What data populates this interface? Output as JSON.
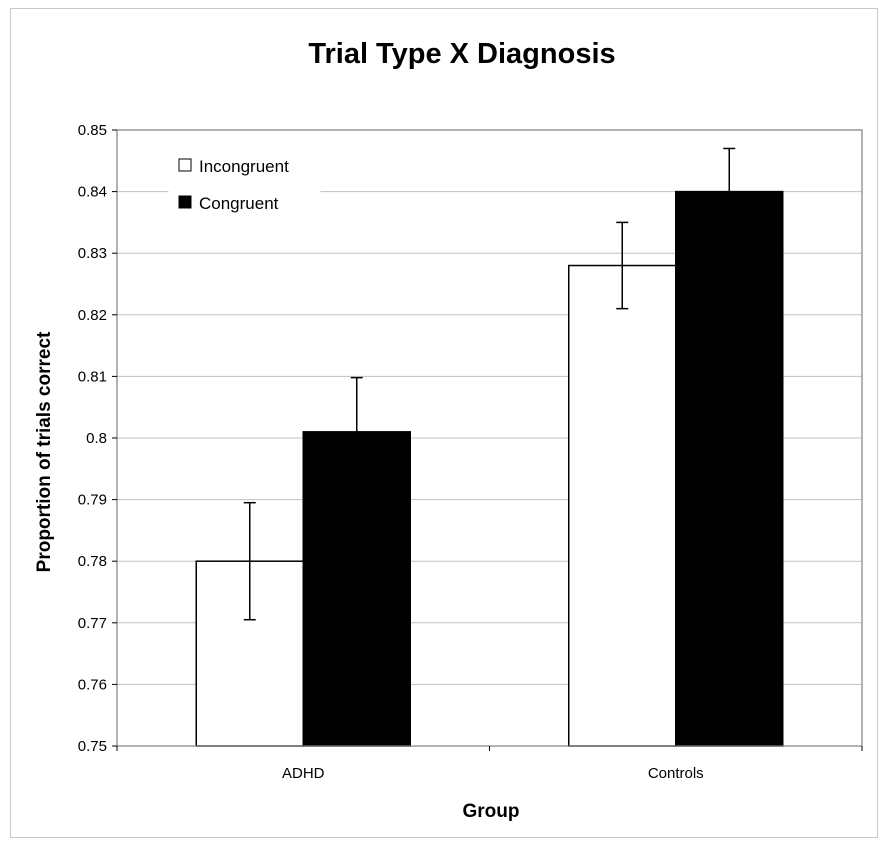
{
  "chart_data": {
    "type": "bar",
    "title": "Trial Type X Diagnosis",
    "xlabel": "Group",
    "ylabel": "Proportion of trials correct",
    "categories": [
      "ADHD",
      "Controls"
    ],
    "series": [
      {
        "name": "Incongruent",
        "color": "#ffffff",
        "values": [
          0.78,
          0.828
        ],
        "error": [
          0.0095,
          0.007
        ]
      },
      {
        "name": "Congruent",
        "color": "#000000",
        "values": [
          0.801,
          0.84
        ],
        "error": [
          0.0088,
          0.007
        ]
      }
    ],
    "ylim": [
      0.75,
      0.85
    ],
    "yticks": [
      "0.75",
      "0.76",
      "0.77",
      "0.78",
      "0.79",
      "0.8",
      "0.81",
      "0.82",
      "0.83",
      "0.84",
      "0.85"
    ],
    "grid": true,
    "legend_position": "top-left"
  }
}
